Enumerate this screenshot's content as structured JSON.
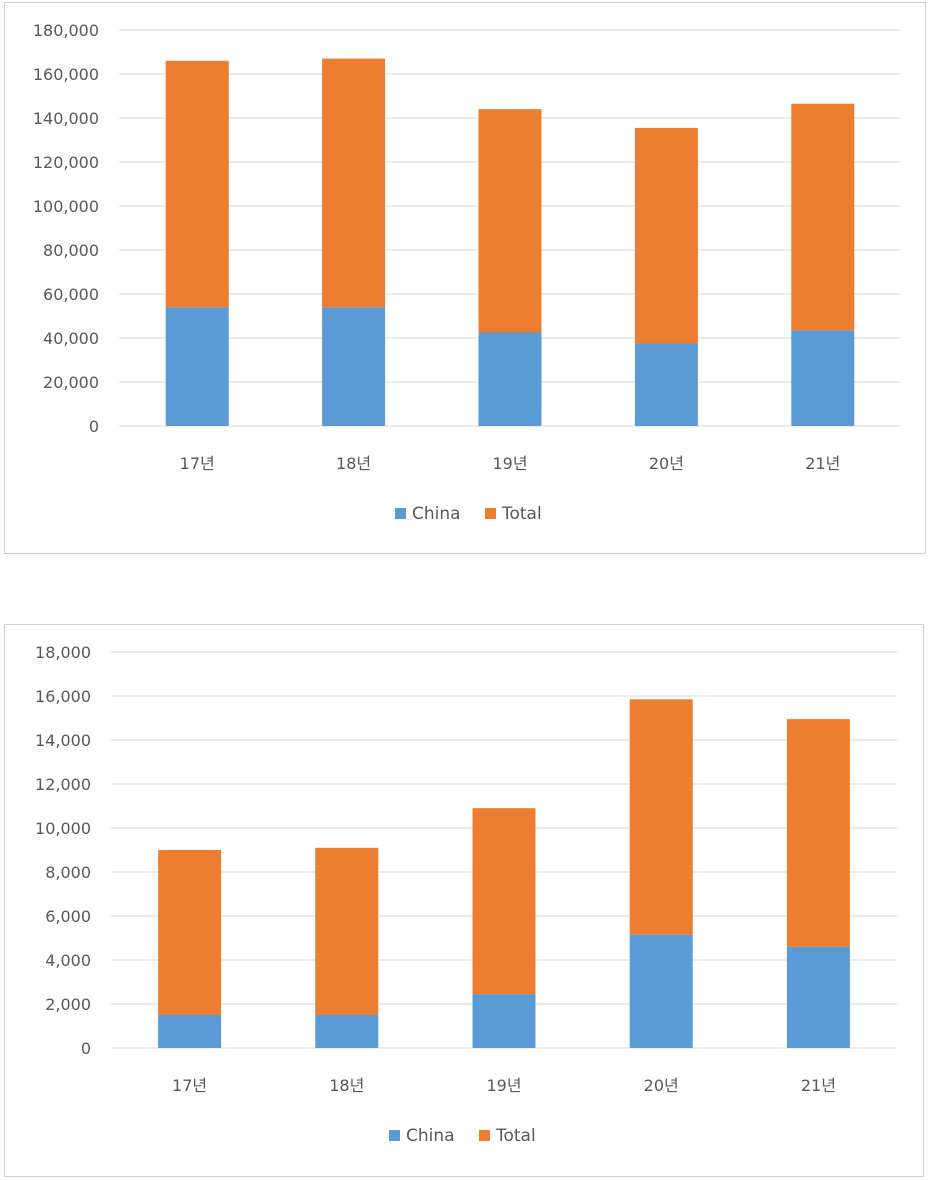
{
  "chart_data": [
    {
      "type": "bar",
      "stacked": true,
      "categories": [
        "17년",
        "18년",
        "19년",
        "20년",
        "21년"
      ],
      "series": [
        {
          "name": "China",
          "values": [
            54000,
            54000,
            42500,
            37500,
            43500
          ],
          "color": "#5b9bd5"
        },
        {
          "name": "Total",
          "values": [
            112000,
            113000,
            101500,
            98000,
            103000
          ],
          "color": "#ed7d31"
        }
      ],
      "yticks": [
        "0",
        "20,000",
        "40,000",
        "60,000",
        "80,000",
        "100,000",
        "120,000",
        "140,000",
        "160,000",
        "180,000"
      ],
      "ylim": [
        0,
        180000
      ],
      "grid": true,
      "legend": "bottom"
    },
    {
      "type": "bar",
      "stacked": true,
      "categories": [
        "17년",
        "18년",
        "19년",
        "20년",
        "21년"
      ],
      "series": [
        {
          "name": "China",
          "values": [
            1500,
            1500,
            2450,
            5150,
            4600
          ],
          "color": "#5b9bd5"
        },
        {
          "name": "Total",
          "values": [
            7500,
            7600,
            8450,
            10700,
            10350
          ],
          "color": "#ed7d31"
        }
      ],
      "yticks": [
        "0",
        "2,000",
        "4,000",
        "6,000",
        "8,000",
        "10,000",
        "12,000",
        "14,000",
        "16,000",
        "18,000"
      ],
      "ylim": [
        0,
        18000
      ],
      "grid": true,
      "legend": "bottom"
    }
  ]
}
